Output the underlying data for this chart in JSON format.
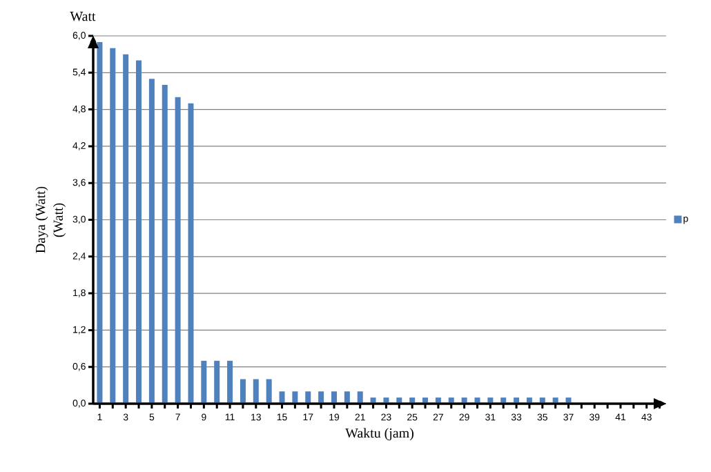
{
  "chart_data": {
    "type": "bar",
    "xlabel": "Waktu (jam)",
    "ylabel": "Daya (Watt)",
    "annotations": [
      "Watt",
      "(Watt)"
    ],
    "categories": [
      "1",
      null,
      "3",
      null,
      "5",
      null,
      "7",
      null,
      "9",
      null,
      "11",
      null,
      "13",
      null,
      "15",
      null,
      "17",
      null,
      "19",
      null,
      "21",
      null,
      "23",
      null,
      "25",
      null,
      "27",
      null,
      "29",
      null,
      "31",
      null,
      "33",
      null,
      "35",
      null,
      "37",
      null,
      "39",
      null,
      "41",
      null,
      "43",
      null
    ],
    "series": [
      {
        "name": "p",
        "color": "#4f81bd",
        "values": [
          5.9,
          5.8,
          5.7,
          5.6,
          5.3,
          5.2,
          5.0,
          4.9,
          0.7,
          0.7,
          0.7,
          0.4,
          0.4,
          0.4,
          0.2,
          0.2,
          0.2,
          0.2,
          0.2,
          0.2,
          0.2,
          0.1,
          0.1,
          0.1,
          0.1,
          0.1,
          0.1,
          0.1,
          0.1,
          0.1,
          0.1,
          0.1,
          0.1,
          0.1,
          0.1,
          0.1,
          0.1,
          null,
          null,
          null,
          null,
          null,
          null,
          null
        ]
      }
    ],
    "ylim": [
      0,
      6.0
    ],
    "yticks": [
      {
        "value": 0,
        "label": "0,0"
      },
      {
        "value": 0.6,
        "label": "0,6"
      },
      {
        "value": 1.2,
        "label": "1,2"
      },
      {
        "value": 1.8,
        "label": "1,8"
      },
      {
        "value": 2.4,
        "label": "2,4"
      },
      {
        "value": 3.0,
        "label": "3,0"
      },
      {
        "value": 3.6,
        "label": "3,6"
      },
      {
        "value": 4.2,
        "label": "4,2"
      },
      {
        "value": 4.8,
        "label": "4,8"
      },
      {
        "value": 5.4,
        "label": "5,4"
      },
      {
        "value": 6.0,
        "label": "6,0"
      }
    ],
    "grid": "y",
    "legend": "right"
  }
}
